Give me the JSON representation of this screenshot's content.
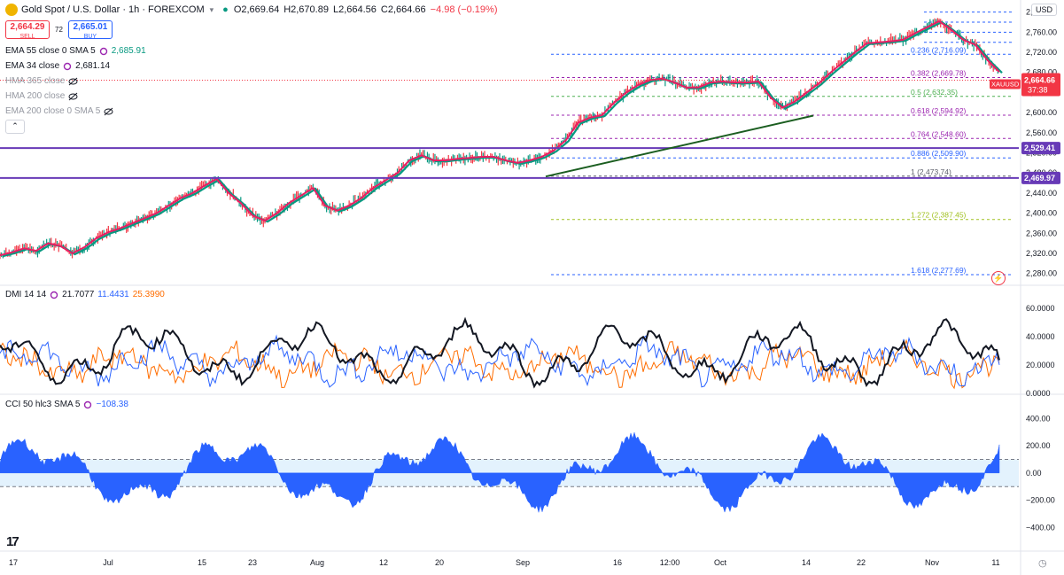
{
  "header": {
    "symbol_title": "Gold Spot / U.S. Dollar · 1h · FOREXCOM",
    "open_label": "O2,669.64",
    "high_label": "H2,670.89",
    "low_label": "L2,664.56",
    "close_label": "C2,664.66",
    "change_label": "−4.98 (−0.19%)",
    "currency": "USD"
  },
  "trade": {
    "sell_price": "2,664.29",
    "sell_label": "SELL",
    "spread": "72",
    "buy_price": "2,665.01",
    "buy_label": "BUY"
  },
  "indicators": [
    {
      "name": "EMA 55 close 0 SMA 5",
      "value": "2,685.91",
      "value_color": "#089981",
      "visible": true
    },
    {
      "name": "EMA 34 close",
      "value": "2,681.14",
      "value_color": "#131722",
      "visible": true
    },
    {
      "name": "HMA 365 close",
      "value": "",
      "visible": false
    },
    {
      "name": "HMA 200 close",
      "value": "",
      "visible": false
    },
    {
      "name": "EMA 200 close 0 SMA 5",
      "value": "",
      "visible": false
    }
  ],
  "dmi": {
    "label": "DMI 14 14",
    "adx": "21.7077",
    "plus_di": "11.4431",
    "minus_di": "25.3990",
    "colors": {
      "adx": "#131722",
      "plus": "#2962ff",
      "minus": "#ff6d00"
    }
  },
  "cci": {
    "label": "CCI 50 hlc3 SMA 5",
    "value": "−108.38",
    "color": "#2962ff"
  },
  "price_axis": {
    "ticks": [
      "2,800.00",
      "2,760.00",
      "2,720.00",
      "2,680.00",
      "2,640.00",
      "2,600.00",
      "2,560.00",
      "2,520.00",
      "2,480.00",
      "2,440.00",
      "2,400.00",
      "2,360.00",
      "2,320.00",
      "2,280.00"
    ]
  },
  "dmi_axis": {
    "ticks": [
      "60.0000",
      "40.0000",
      "20.0000",
      "0.0000"
    ]
  },
  "cci_axis": {
    "ticks": [
      "400.00",
      "200.00",
      "0.00",
      "−200.00",
      "−400.00"
    ]
  },
  "badges": {
    "last_price": "2,664.66",
    "countdown": "37:38",
    "symbol": "XAUUSD",
    "level_upper": "2,529.41",
    "level_lower": "2,469.97"
  },
  "x_axis": {
    "ticks": [
      "17",
      "Jul",
      "15",
      "23",
      "Aug",
      "12",
      "20",
      "Sep",
      "16",
      "12:00",
      "Oct",
      "14",
      "22",
      "Nov",
      "11"
    ]
  },
  "fibonacci": [
    {
      "label": "1.618 (2,277.69)",
      "color": "#2962ff"
    },
    {
      "label": "1.272 (2,387.45)",
      "color": "#a0c020"
    },
    {
      "label": "1 (2,473.74)",
      "color": "#5d606b"
    },
    {
      "label": "0.886 (2,509.90)",
      "color": "#2962ff"
    },
    {
      "label": "0.764 (2,548.60)",
      "color": "#9c27b0"
    },
    {
      "label": "0.618 (2,594.92)",
      "color": "#9c27b0"
    },
    {
      "label": "0.5 (2,632.35)",
      "color": "#4caf50"
    },
    {
      "label": "0.382 (2,669.78)",
      "color": "#9c27b0"
    },
    {
      "label": "0.236 (2,716.09)",
      "color": "#2962ff"
    }
  ],
  "colors": {
    "ema55": "#089981",
    "ema34": "#e91e63",
    "hline": "#673ab7",
    "trendline": "#1b5e20",
    "candle_up": "#089981",
    "candle_down": "#f23645"
  },
  "chart_data": {
    "type": "line",
    "ylim": [
      2260,
      2810
    ],
    "x_ticks": [
      "17",
      "Jul",
      "15",
      "23",
      "Aug",
      "12",
      "20",
      "Sep",
      "16",
      "12:00",
      "Oct",
      "14",
      "22",
      "Nov",
      "11"
    ],
    "price_series": [
      {
        "name": "EMA 34 close",
        "values": [
          2316,
          2322,
          2330,
          2325,
          2340,
          2335,
          2320,
          2332,
          2350,
          2362,
          2370,
          2380,
          2390,
          2400,
          2415,
          2430,
          2440,
          2455,
          2468,
          2440,
          2420,
          2395,
          2385,
          2400,
          2420,
          2435,
          2450,
          2415,
          2405,
          2415,
          2430,
          2450,
          2465,
          2480,
          2505,
          2515,
          2505,
          2505,
          2508,
          2510,
          2512,
          2512,
          2505,
          2500,
          2505,
          2512,
          2525,
          2545,
          2580,
          2590,
          2595,
          2620,
          2640,
          2655,
          2665,
          2668,
          2660,
          2650,
          2650,
          2660,
          2662,
          2660,
          2660,
          2662,
          2630,
          2610,
          2622,
          2640,
          2658,
          2680,
          2700,
          2720,
          2738,
          2740,
          2742,
          2745,
          2758,
          2770,
          2782,
          2765,
          2745,
          2735,
          2705,
          2681
        ]
      }
    ],
    "levels": [
      2529.41,
      2469.97
    ],
    "fib_levels": [
      2277.69,
      2387.45,
      2473.74,
      2509.9,
      2548.6,
      2594.92,
      2632.35,
      2669.78,
      2716.09
    ],
    "dmi": {
      "ylim": [
        0,
        65
      ]
    },
    "cci": {
      "ylim": [
        -560,
        480
      ]
    }
  }
}
